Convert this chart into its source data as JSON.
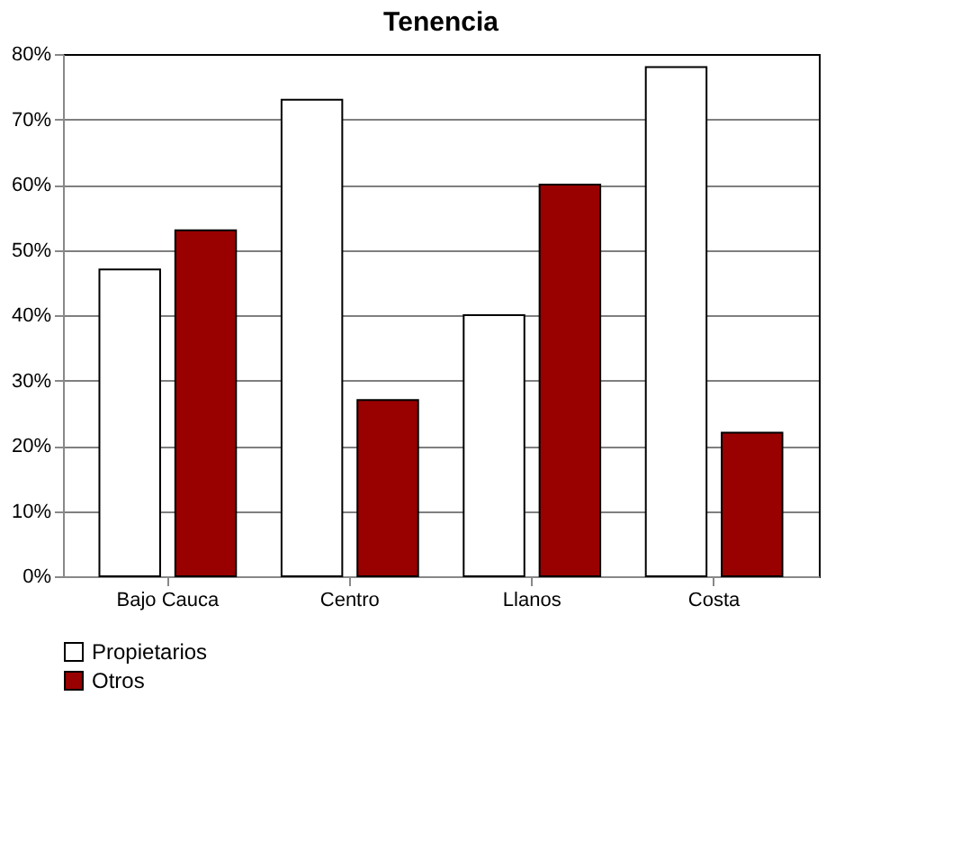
{
  "chart_data": {
    "type": "bar",
    "title": "Tenencia",
    "categories": [
      "Bajo Cauca",
      "Centro",
      "Llanos",
      "Costa"
    ],
    "series": [
      {
        "name": "Propietarios",
        "color": "#ffffff",
        "values": [
          47,
          73,
          40,
          78
        ]
      },
      {
        "name": "Otros",
        "color": "#990000",
        "values": [
          53,
          27,
          60,
          22
        ]
      }
    ],
    "ylim": [
      0,
      80
    ],
    "yticks": [
      {
        "value": 0,
        "label": "0%"
      },
      {
        "value": 10,
        "label": "10%"
      },
      {
        "value": 20,
        "label": "20%"
      },
      {
        "value": 30,
        "label": "30%"
      },
      {
        "value": 40,
        "label": "40%"
      },
      {
        "value": 50,
        "label": "50%"
      },
      {
        "value": 60,
        "label": "60%"
      },
      {
        "value": 70,
        "label": "70%"
      },
      {
        "value": 80,
        "label": "80%"
      }
    ],
    "grid": "y",
    "legend": "bottom left"
  }
}
